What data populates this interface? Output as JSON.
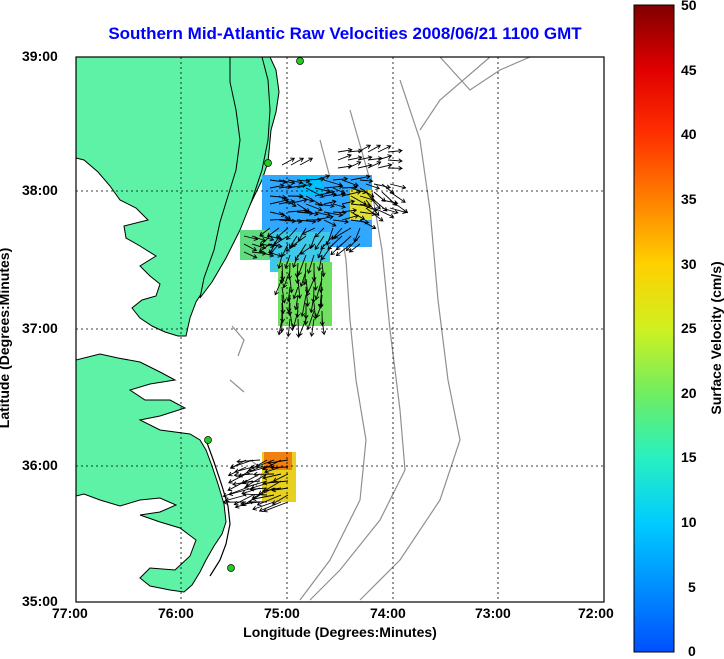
{
  "title": "Southern Mid-Atlantic Raw Velocities 2008/06/21 1100 GMT",
  "axes": {
    "xlabel": "Longitude (Degrees:Minutes)",
    "ylabel": "Latitude (Degrees:Minutes)",
    "x_ticks": [
      "77:00",
      "76:00",
      "75:00",
      "74:00",
      "73:00",
      "72:00"
    ],
    "y_ticks": [
      "39:00",
      "38:00",
      "37:00",
      "36:00",
      "35:00"
    ]
  },
  "colorbar": {
    "label": "Surface Velocity (cm/s)",
    "ticks": [
      "50",
      "45",
      "40",
      "35",
      "30",
      "25",
      "20",
      "15",
      "10",
      "5",
      "0"
    ],
    "range": [
      0,
      50
    ]
  },
  "colors": {
    "land": "#5ef2a6",
    "coast": "#000000",
    "bathymetry": "#909090",
    "grid": "#000000",
    "station": "#22cc22"
  }
}
